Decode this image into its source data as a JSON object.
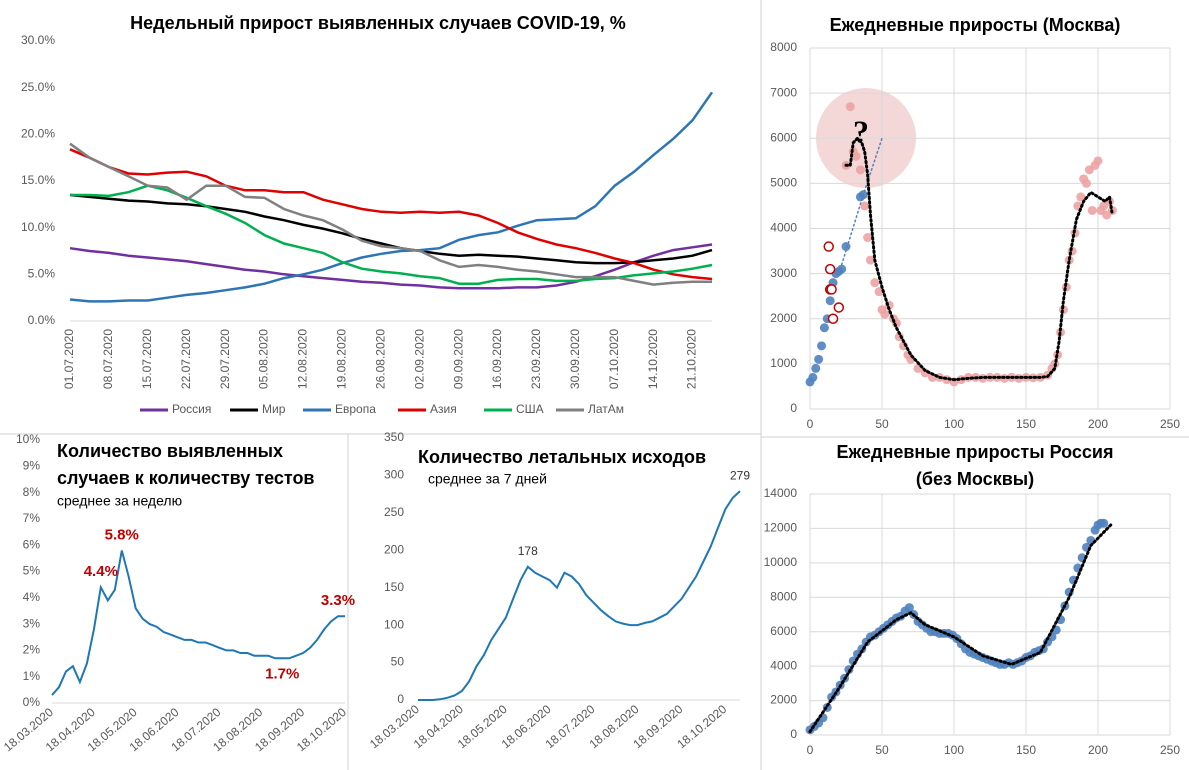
{
  "chart_data": [
    {
      "type": "line",
      "title": "Недельный прирост выявленных случаев COVID-19, %",
      "categories": [
        "01.07.2020",
        null,
        "08.07.2020",
        null,
        "15.07.2020",
        null,
        "22.07.2020",
        null,
        "29.07.2020",
        null,
        "05.08.2020",
        null,
        "12.08.2020",
        null,
        "19.08.2020",
        null,
        "26.08.2020",
        null,
        "02.09.2020",
        null,
        "09.09.2020",
        null,
        "16.09.2020",
        null,
        "23.09.2020",
        null,
        "30.09.2020",
        null,
        "07.10.2020",
        null,
        "14.10.2020",
        null,
        "21.10.2020",
        null
      ],
      "series": [
        {
          "name": "Россия",
          "color": "#7030a0",
          "values": [
            7.8,
            7.5,
            7.3,
            7.0,
            6.8,
            6.6,
            6.4,
            6.1,
            5.8,
            5.5,
            5.3,
            5.0,
            4.8,
            4.6,
            4.4,
            4.2,
            4.1,
            3.9,
            3.8,
            3.6,
            3.5,
            3.5,
            3.5,
            3.6,
            3.6,
            3.8,
            4.2,
            4.8,
            5.5,
            6.3,
            7.0,
            7.6,
            7.9,
            8.2
          ]
        },
        {
          "name": "Мир",
          "color": "#000000",
          "values": [
            13.5,
            13.3,
            13.1,
            12.9,
            12.8,
            12.6,
            12.5,
            12.3,
            12.0,
            11.7,
            11.2,
            10.8,
            10.3,
            9.9,
            9.4,
            8.8,
            8.3,
            7.8,
            7.5,
            7.2,
            7.0,
            7.1,
            7.0,
            6.9,
            6.7,
            6.5,
            6.3,
            6.2,
            6.2,
            6.3,
            6.5,
            6.7,
            7.0,
            7.6
          ]
        },
        {
          "name": "Европа",
          "color": "#2e75b6",
          "values": [
            2.3,
            2.1,
            2.1,
            2.2,
            2.2,
            2.5,
            2.8,
            3.0,
            3.3,
            3.6,
            4.0,
            4.6,
            5.0,
            5.5,
            6.2,
            6.8,
            7.2,
            7.5,
            7.6,
            7.8,
            8.7,
            9.2,
            9.5,
            10.2,
            10.8,
            10.9,
            11.0,
            12.3,
            14.5,
            16.0,
            17.8,
            19.5,
            21.5,
            24.5
          ]
        },
        {
          "name": "Азия",
          "color": "#e00000",
          "values": [
            18.4,
            17.5,
            16.5,
            15.8,
            15.7,
            15.9,
            16.0,
            15.5,
            14.5,
            14.0,
            14.0,
            13.8,
            13.8,
            13.0,
            12.5,
            12.0,
            11.7,
            11.6,
            11.7,
            11.6,
            11.7,
            11.3,
            10.5,
            9.5,
            8.8,
            8.2,
            7.8,
            7.3,
            6.7,
            6.2,
            5.5,
            5.0,
            4.7,
            4.5
          ]
        },
        {
          "name": "США",
          "color": "#00b050",
          "values": [
            13.5,
            13.5,
            13.4,
            13.8,
            14.5,
            14.0,
            13.2,
            12.3,
            11.5,
            10.5,
            9.2,
            8.3,
            7.8,
            7.3,
            6.3,
            5.6,
            5.3,
            5.1,
            4.8,
            4.6,
            4.0,
            4.0,
            4.4,
            4.5,
            4.5,
            4.3,
            4.3,
            4.5,
            4.6,
            4.9,
            5.1,
            5.3,
            5.6,
            6.0
          ]
        },
        {
          "name": "ЛатАм",
          "color": "#808080",
          "values": [
            19.0,
            17.5,
            16.5,
            15.5,
            14.5,
            14.3,
            13.0,
            14.5,
            14.5,
            13.3,
            13.2,
            12.0,
            11.3,
            10.8,
            9.8,
            8.6,
            8.0,
            7.8,
            7.5,
            6.5,
            5.8,
            6.0,
            5.8,
            5.5,
            5.3,
            5.0,
            4.7,
            4.7,
            4.7,
            4.3,
            3.9,
            4.1,
            4.2,
            4.2
          ]
        }
      ],
      "ylim": [
        0,
        30
      ],
      "yticks": [
        {
          "value": 0,
          "label": "0.0%"
        },
        {
          "value": 5,
          "label": "5.0%"
        },
        {
          "value": 10,
          "label": "10.0%"
        },
        {
          "value": 15,
          "label": "15.0%"
        },
        {
          "value": 20,
          "label": "20.0%"
        },
        {
          "value": 25,
          "label": "25.0%"
        },
        {
          "value": 30,
          "label": "30.0%"
        }
      ],
      "grid": false,
      "legend": "bottom"
    },
    {
      "type": "scatter",
      "title": "Ежедневные приросты (Москва)",
      "annotation": "?",
      "xlim": [
        0,
        250
      ],
      "xticks": [
        0,
        50,
        100,
        150,
        200,
        250
      ],
      "ylim": [
        0,
        8000
      ],
      "yticks": [
        0,
        1000,
        2000,
        3000,
        4000,
        5000,
        6000,
        7000,
        8000
      ],
      "grid": true,
      "series": [
        {
          "color": "#4f81bd",
          "style": "points",
          "x": [
            0,
            2,
            4,
            6,
            8,
            10,
            12,
            14,
            16,
            18,
            20,
            22,
            25,
            35,
            37
          ],
          "values": [
            600,
            700,
            900,
            1100,
            1400,
            1800,
            2000,
            2400,
            2800,
            3000,
            3050,
            3100,
            3600,
            4700,
            4750
          ]
        },
        {
          "color": "#eca3a3",
          "style": "points",
          "x": [
            25,
            28,
            30,
            32,
            35,
            38,
            40,
            42,
            45,
            48,
            50,
            52,
            55,
            58,
            60,
            62,
            65,
            68,
            70,
            75,
            80,
            85,
            90,
            95,
            100,
            105,
            110,
            115,
            120,
            125,
            130,
            135,
            140,
            145,
            150,
            155,
            160,
            165,
            168,
            170,
            172,
            174,
            176,
            178,
            180,
            182,
            184,
            186,
            188,
            190,
            192,
            194,
            196,
            198,
            200,
            202,
            204,
            206,
            208,
            210
          ],
          "values": [
            5400,
            6700,
            5700,
            5600,
            5300,
            4500,
            3800,
            3300,
            2800,
            2600,
            2200,
            2100,
            2300,
            2000,
            1900,
            1600,
            1400,
            1200,
            1100,
            900,
            800,
            700,
            700,
            650,
            600,
            650,
            700,
            700,
            680,
            700,
            700,
            680,
            700,
            680,
            700,
            690,
            700,
            750,
            900,
            1000,
            1200,
            1700,
            2200,
            2700,
            3300,
            3500,
            3900,
            4500,
            4700,
            5100,
            5000,
            5300,
            4400,
            5400,
            5500,
            4400,
            4500,
            4300,
            4600,
            4400
          ]
        },
        {
          "color": "#c00000",
          "style": "open-points",
          "x": [
            13,
            14,
            14,
            15,
            16,
            20
          ],
          "values": [
            3600,
            3100,
            2650,
            2650,
            2000,
            2250
          ]
        },
        {
          "color": "#4f81bd",
          "style": "dotted",
          "x": [
            22,
            37,
            50
          ],
          "values": [
            3200,
            4750,
            6000
          ]
        },
        {
          "color": "#000000",
          "style": "dotted",
          "x": [
            25,
            28,
            30,
            33,
            36,
            38,
            40,
            42,
            45,
            50,
            55,
            60,
            70,
            80,
            90,
            100,
            110,
            120,
            130,
            140,
            150,
            160,
            165,
            170,
            173,
            176,
            180,
            185,
            190,
            195,
            200,
            205,
            208,
            210
          ],
          "values": [
            5400,
            5400,
            5900,
            6000,
            5900,
            5700,
            5200,
            4300,
            3300,
            2700,
            2200,
            1800,
            1200,
            850,
            700,
            650,
            680,
            700,
            700,
            700,
            700,
            700,
            720,
            900,
            1500,
            2400,
            3300,
            4200,
            4600,
            4800,
            4700,
            4600,
            4700,
            4300
          ]
        }
      ]
    },
    {
      "type": "line",
      "title": [
        "Количество выявленных",
        "случаев к количеству тестов"
      ],
      "subtitle": "среднее за неделю",
      "categories": [
        "18.03.2020",
        null,
        null,
        null,
        null,
        null,
        "18.04.2020",
        null,
        null,
        null,
        null,
        null,
        "18.05.2020",
        null,
        null,
        null,
        null,
        null,
        "18.06.2020",
        null,
        null,
        null,
        null,
        null,
        "18.07.2020",
        null,
        null,
        null,
        null,
        null,
        "18.08.2020",
        null,
        null,
        null,
        null,
        null,
        "18.09.2020",
        null,
        null,
        null,
        null,
        null,
        "18.10.2020"
      ],
      "values": [
        0.3,
        0.6,
        1.2,
        1.4,
        0.8,
        1.5,
        2.8,
        4.4,
        3.9,
        4.3,
        5.8,
        4.8,
        3.6,
        3.2,
        3.0,
        2.9,
        2.7,
        2.6,
        2.5,
        2.4,
        2.4,
        2.3,
        2.3,
        2.2,
        2.1,
        2.0,
        2.0,
        1.9,
        1.9,
        1.8,
        1.8,
        1.8,
        1.7,
        1.7,
        1.7,
        1.8,
        1.9,
        2.1,
        2.4,
        2.8,
        3.1,
        3.3,
        3.3
      ],
      "value_labels": [
        null,
        null,
        null,
        null,
        null,
        null,
        null,
        "4.4%",
        null,
        null,
        "5.8%",
        null,
        null,
        null,
        null,
        null,
        null,
        null,
        null,
        null,
        null,
        null,
        null,
        null,
        null,
        null,
        null,
        null,
        null,
        null,
        null,
        null,
        null,
        "1.7%",
        null,
        null,
        null,
        null,
        null,
        null,
        null,
        "3.3%",
        null
      ],
      "value_label_color": "#c00000",
      "color": "#1f77b4",
      "ylim": [
        0,
        10
      ],
      "yticks": [
        {
          "value": 0,
          "label": "0%"
        },
        {
          "value": 1,
          "label": "1%"
        },
        {
          "value": 2,
          "label": "2%"
        },
        {
          "value": 3,
          "label": "3%"
        },
        {
          "value": 4,
          "label": "4%"
        },
        {
          "value": 5,
          "label": "5%"
        },
        {
          "value": 6,
          "label": "6%"
        },
        {
          "value": 7,
          "label": "7%"
        },
        {
          "value": 8,
          "label": "8%"
        },
        {
          "value": 9,
          "label": "9%"
        },
        {
          "value": 10,
          "label": "10%"
        }
      ],
      "grid": false
    },
    {
      "type": "line",
      "title": "Количество летальных исходов",
      "subtitle": "среднее за 7 дней",
      "categories": [
        "18.03.2020",
        null,
        null,
        null,
        null,
        null,
        "18.04.2020",
        null,
        null,
        null,
        null,
        null,
        "18.05.2020",
        null,
        null,
        null,
        null,
        null,
        "18.06.2020",
        null,
        null,
        null,
        null,
        null,
        "18.07.2020",
        null,
        null,
        null,
        null,
        null,
        "18.08.2020",
        null,
        null,
        null,
        null,
        null,
        "18.09.2020",
        null,
        null,
        null,
        null,
        null,
        "18.10.2020",
        null,
        null
      ],
      "values": [
        0,
        0,
        0,
        1,
        3,
        6,
        12,
        25,
        45,
        60,
        80,
        95,
        110,
        135,
        160,
        178,
        170,
        165,
        160,
        150,
        170,
        165,
        155,
        140,
        130,
        120,
        112,
        105,
        102,
        100,
        100,
        103,
        105,
        110,
        115,
        125,
        135,
        150,
        165,
        185,
        205,
        230,
        255,
        270,
        279
      ],
      "value_labels": [
        null,
        null,
        null,
        null,
        null,
        null,
        null,
        null,
        null,
        null,
        null,
        null,
        null,
        null,
        null,
        "178",
        null,
        null,
        null,
        null,
        null,
        null,
        null,
        null,
        null,
        null,
        null,
        null,
        null,
        null,
        null,
        null,
        null,
        null,
        null,
        null,
        null,
        null,
        null,
        null,
        null,
        null,
        null,
        null,
        "279"
      ],
      "value_label_color": "#333333",
      "color": "#1f77b4",
      "ylim": [
        0,
        350
      ],
      "yticks": [
        0,
        50,
        100,
        150,
        200,
        250,
        300,
        350
      ],
      "grid": false
    },
    {
      "type": "scatter",
      "title": [
        "Ежедневные приросты Россия",
        "(без Москвы)"
      ],
      "xlim": [
        0,
        250
      ],
      "xticks": [
        0,
        50,
        100,
        150,
        200,
        250
      ],
      "ylim": [
        0,
        14000
      ],
      "yticks": [
        0,
        2000,
        4000,
        6000,
        8000,
        10000,
        12000,
        14000
      ],
      "grid": true,
      "series": [
        {
          "color": "#4f81bd",
          "style": "points",
          "x": [
            0,
            3,
            6,
            9,
            12,
            15,
            18,
            21,
            24,
            27,
            30,
            33,
            36,
            39,
            42,
            45,
            48,
            51,
            54,
            57,
            60,
            63,
            66,
            69,
            72,
            75,
            78,
            81,
            84,
            87,
            90,
            93,
            96,
            99,
            102,
            105,
            108,
            111,
            114,
            117,
            120,
            123,
            126,
            129,
            132,
            135,
            138,
            141,
            144,
            147,
            150,
            153,
            156,
            159,
            162,
            165,
            168,
            171,
            174,
            177,
            180,
            183,
            186,
            189,
            192,
            195,
            198,
            200,
            202,
            204
          ],
          "values": [
            300,
            500,
            700,
            1000,
            1600,
            2200,
            2500,
            2900,
            3300,
            3800,
            4300,
            4700,
            5000,
            5400,
            5700,
            5800,
            6000,
            6200,
            6400,
            6600,
            6800,
            6900,
            7200,
            7400,
            7000,
            6600,
            6400,
            6200,
            6000,
            6000,
            5900,
            5900,
            5900,
            5800,
            5600,
            5300,
            5000,
            4800,
            4700,
            4600,
            4500,
            4400,
            4300,
            4200,
            4100,
            4100,
            4200,
            4100,
            4200,
            4300,
            4500,
            4600,
            4800,
            4900,
            5000,
            5400,
            5700,
            6100,
            6700,
            7500,
            8300,
            9000,
            9700,
            10300,
            10900,
            11300,
            11900,
            12200,
            12300,
            12300
          ]
        },
        {
          "color": "#000000",
          "style": "dotted",
          "x": [
            0,
            20,
            40,
            60,
            70,
            80,
            100,
            120,
            140,
            160,
            180,
            195,
            210
          ],
          "values": [
            200,
            2700,
            5400,
            6700,
            7100,
            6400,
            5700,
            4600,
            4100,
            4800,
            8000,
            11000,
            12300
          ]
        }
      ]
    }
  ]
}
